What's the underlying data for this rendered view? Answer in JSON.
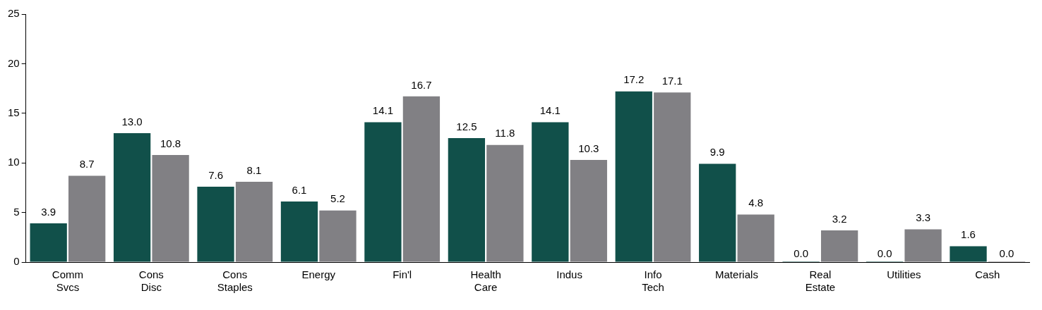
{
  "chart_data": {
    "type": "bar",
    "categories": [
      "Comm Svcs",
      "Cons Disc",
      "Cons Staples",
      "Energy",
      "Fin'l",
      "Health Care",
      "Indus",
      "Info Tech",
      "Materials",
      "Real Estate",
      "Utilities",
      "Cash"
    ],
    "series": [
      {
        "color": "#11504a",
        "values": [
          3.9,
          13.0,
          7.6,
          6.1,
          14.1,
          12.5,
          14.1,
          17.2,
          9.9,
          0.0,
          0.0,
          1.6
        ],
        "value_labels": [
          "3.9",
          "13.0",
          "7.6",
          "6.1",
          "14.1",
          "12.5",
          "14.1",
          "17.2",
          "9.9",
          "0.0",
          "0.0",
          "1.6"
        ]
      },
      {
        "color": "#818084",
        "values": [
          8.7,
          10.8,
          8.1,
          5.2,
          16.7,
          11.8,
          10.3,
          17.1,
          4.8,
          3.2,
          3.3,
          0.0
        ],
        "value_labels": [
          "8.7",
          "10.8",
          "8.1",
          "5.2",
          "16.7",
          "11.8",
          "10.3",
          "17.1",
          "4.8",
          "3.2",
          "3.3",
          "0.0"
        ]
      }
    ],
    "ylim": [
      0,
      25
    ],
    "yticks": [
      0,
      5,
      10,
      15,
      20,
      25
    ],
    "grid": false,
    "legend": false
  }
}
